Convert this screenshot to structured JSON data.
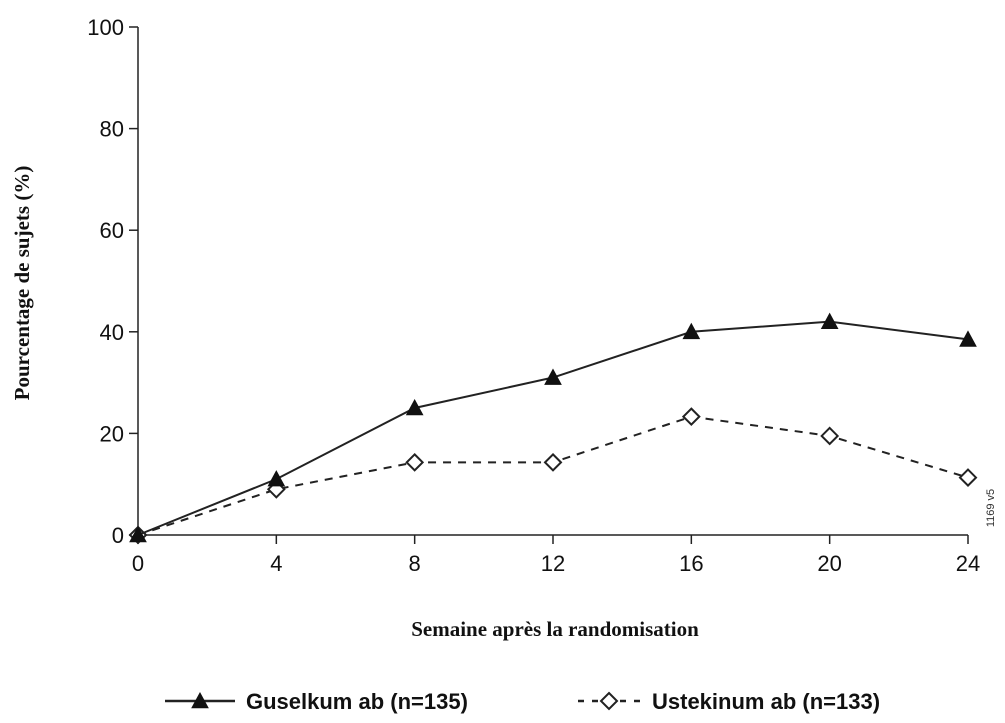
{
  "chart_data": {
    "type": "line",
    "title": "",
    "xlabel": "Semaine après la randomisation",
    "ylabel": "Pourcentage de sujets (%)",
    "x": [
      0,
      4,
      8,
      12,
      16,
      20,
      24
    ],
    "xticks": [
      "0",
      "4",
      "8",
      "12",
      "16",
      "20",
      "24"
    ],
    "xlim": [
      0,
      24
    ],
    "yticks": [
      "0",
      "20",
      "40",
      "60",
      "80",
      "100"
    ],
    "ylim": [
      0,
      100
    ],
    "grid": false,
    "legend_position": "bottom",
    "series": [
      {
        "name": "Guselkum ab (n=135)",
        "values": [
          0,
          11,
          25,
          31,
          40,
          42,
          38.5
        ],
        "marker": "filled-triangle",
        "line_style": "solid",
        "color": "#222222"
      },
      {
        "name": "Ustekinum ab (n=133)",
        "values": [
          0,
          9,
          14.3,
          14.3,
          23.3,
          19.5,
          11.3
        ],
        "marker": "open-diamond",
        "line_style": "dashed",
        "color": "#222222"
      }
    ]
  },
  "side_code": "1169 v5"
}
